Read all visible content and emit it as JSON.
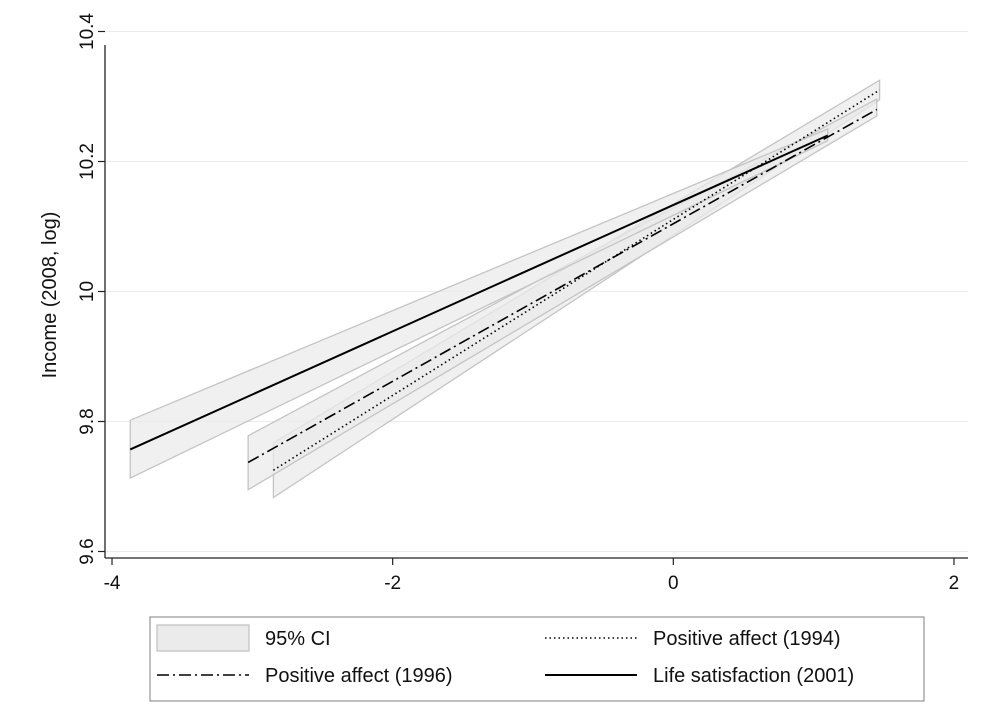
{
  "chart_data": {
    "type": "line",
    "title": "",
    "xlabel": "",
    "ylabel": "Income (2008, log)",
    "xlim": [
      -4.05,
      2.1
    ],
    "ylim": [
      9.59,
      10.41
    ],
    "xticks": [
      -4,
      -2,
      0,
      2
    ],
    "yticks": [
      9.6,
      9.8,
      10,
      10.2,
      10.4
    ],
    "xtick_labels": [
      "-4",
      "-2",
      "0",
      "2"
    ],
    "ytick_labels": [
      "9.6",
      "9.8",
      "10",
      "10.2",
      "10.4"
    ],
    "grid": "horizontal",
    "legend_position": "bottom",
    "series": [
      {
        "name": "Positive affect (1994)",
        "style": "dotted",
        "x": [
          -2.85,
          1.47
        ],
        "y": [
          9.725,
          10.31
        ],
        "ci_lower": [
          9.683,
          10.295
        ],
        "ci_upper": [
          9.767,
          10.325
        ]
      },
      {
        "name": "Positive affect (1996)",
        "style": "dash-dot",
        "x": [
          -3.03,
          1.45
        ],
        "y": [
          9.737,
          10.28
        ],
        "ci_lower": [
          9.695,
          10.27
        ],
        "ci_upper": [
          9.778,
          10.296
        ]
      },
      {
        "name": "Life satisfaction (2001)",
        "style": "solid",
        "x": [
          -3.87,
          1.1
        ],
        "y": [
          9.757,
          10.24
        ],
        "ci_lower": [
          9.713,
          10.232
        ],
        "ci_upper": [
          9.802,
          10.25
        ]
      }
    ],
    "legend": {
      "entries": [
        {
          "label": "95% CI",
          "kind": "ci"
        },
        {
          "label": "Positive affect (1994)",
          "kind": "dotted"
        },
        {
          "label": "Positive affect (1996)",
          "kind": "dash-dot"
        },
        {
          "label": "Life satisfaction (2001)",
          "kind": "solid"
        }
      ]
    },
    "colors": {
      "line": "#000000",
      "ci_fill": "#ebebeb",
      "ci_edge": "#c4c4c4",
      "grid": "#ececec"
    }
  }
}
